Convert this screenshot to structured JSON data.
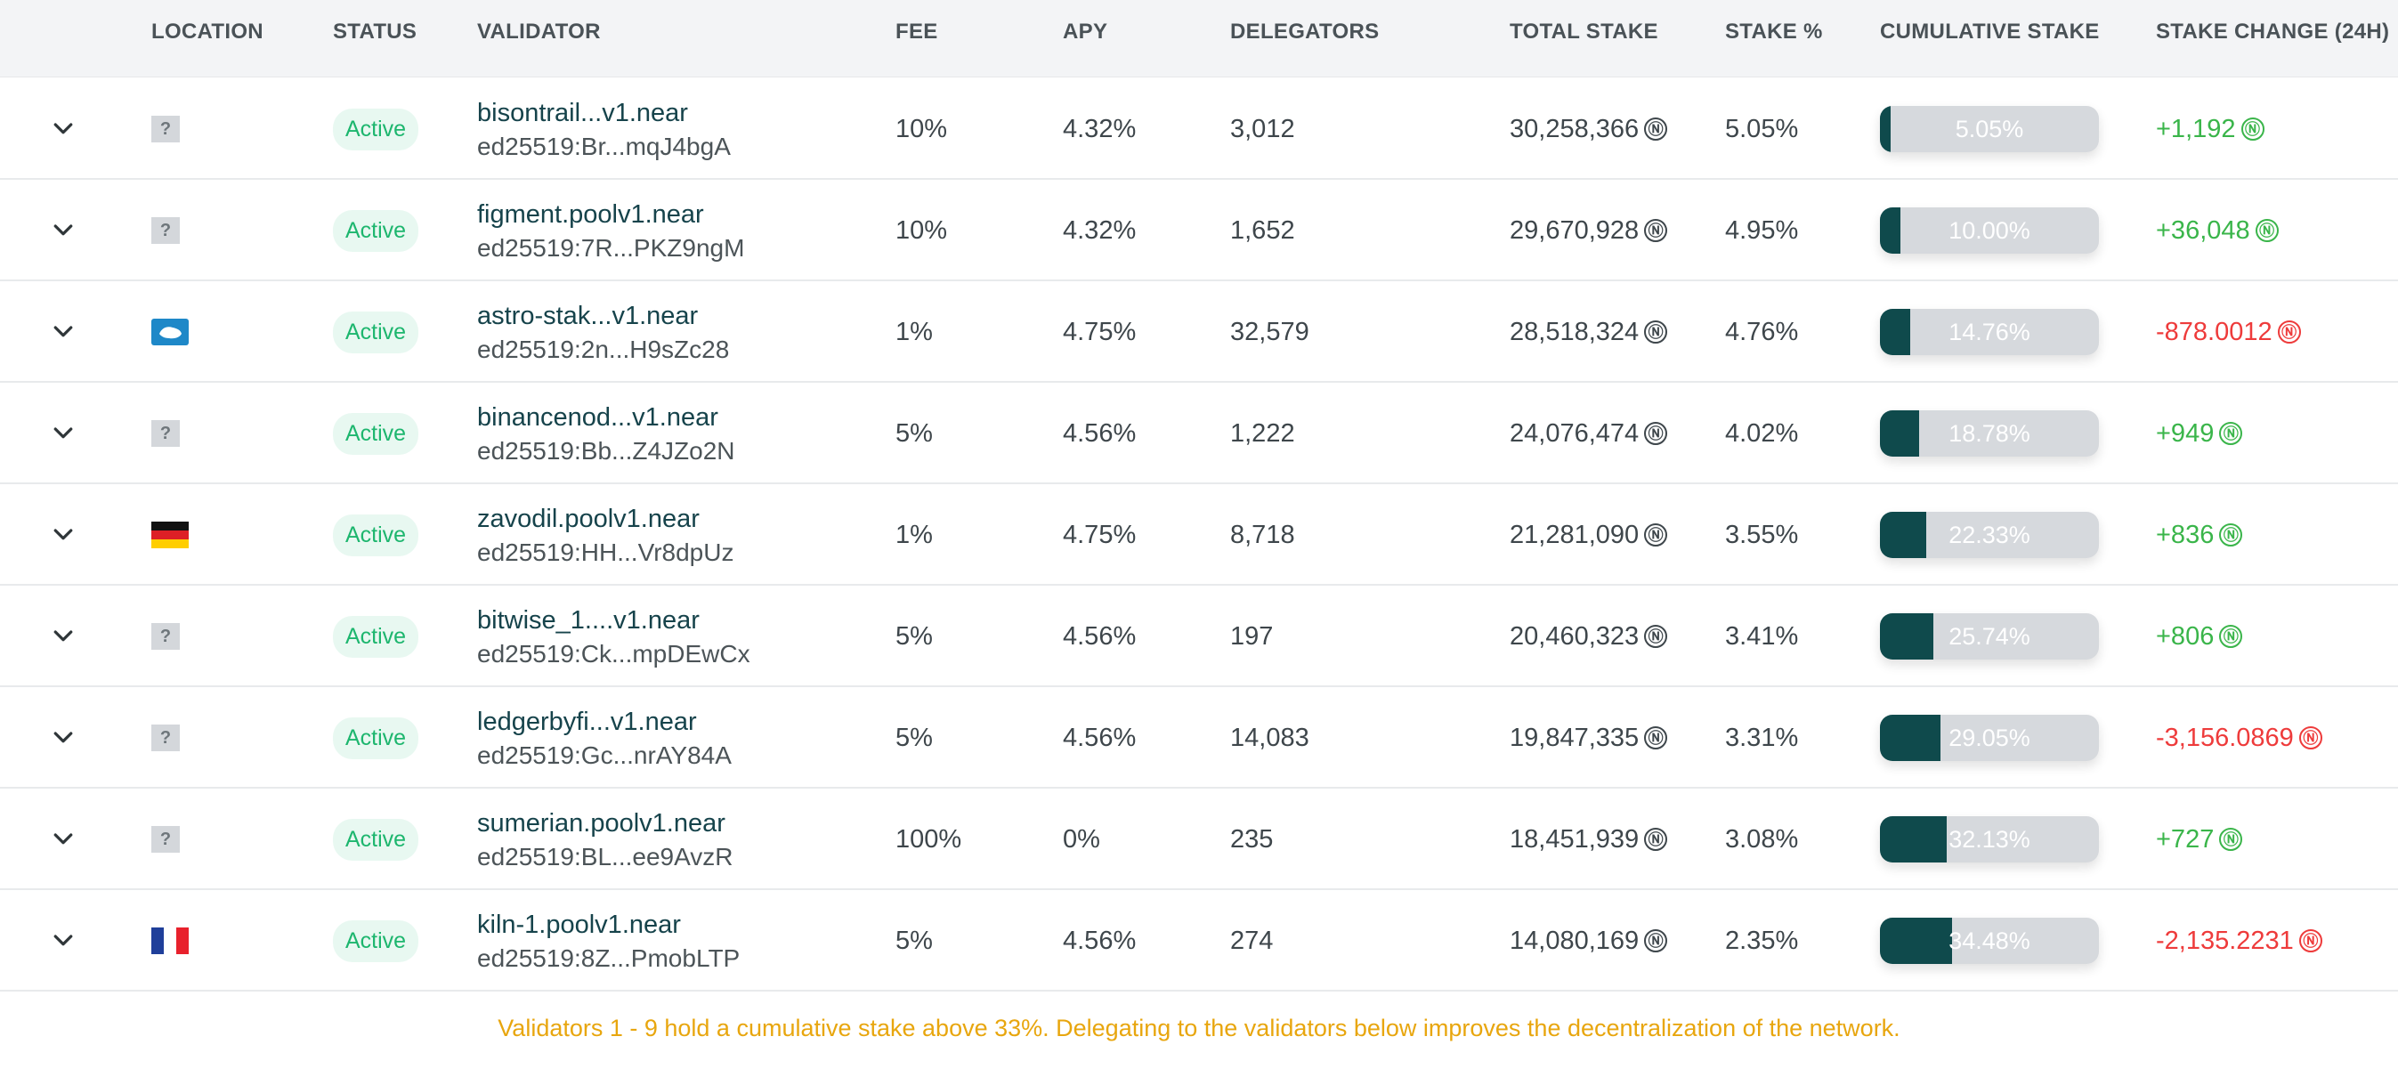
{
  "columns": {
    "location": "LOCATION",
    "status": "STATUS",
    "validator": "VALIDATOR",
    "fee": "FEE",
    "apy": "APY",
    "delegators": "DELEGATORS",
    "total_stake": "TOTAL STAKE",
    "stake_pct": "STAKE %",
    "cumulative": "CUMULATIVE STAKE",
    "change": "STAKE CHANGE (24H)"
  },
  "currency_symbol": "Ⓝ",
  "colors": {
    "positive": "#3ab54a",
    "negative": "#ee3b3b",
    "bar_fill": "#0f4a4c",
    "active_badge": "#1db66e",
    "notice": "#e8a60e"
  },
  "rows": [
    {
      "location": "unknown",
      "status": "Active",
      "name": "bisontrail...v1.near",
      "key": "ed25519:Br...mqJ4bgA",
      "fee": "10%",
      "apy": "4.32%",
      "delegators": "3,012",
      "total_stake": "30,258,366",
      "stake_pct": "5.05%",
      "cumulative": "5.05%",
      "cumulative_value": 5.05,
      "change": "+1,192",
      "change_sign": "pos"
    },
    {
      "location": "unknown",
      "status": "Active",
      "name": "figment.poolv1.near",
      "key": "ed25519:7R...PKZ9ngM",
      "fee": "10%",
      "apy": "4.32%",
      "delegators": "1,652",
      "total_stake": "29,670,928",
      "stake_pct": "4.95%",
      "cumulative": "10.00%",
      "cumulative_value": 10.0,
      "change": "+36,048",
      "change_sign": "pos"
    },
    {
      "location": "antarctica-flag",
      "status": "Active",
      "name": "astro-stak...v1.near",
      "key": "ed25519:2n...H9sZc28",
      "fee": "1%",
      "apy": "4.75%",
      "delegators": "32,579",
      "total_stake": "28,518,324",
      "stake_pct": "4.76%",
      "cumulative": "14.76%",
      "cumulative_value": 14.76,
      "change": "-878.0012",
      "change_sign": "neg"
    },
    {
      "location": "unknown",
      "status": "Active",
      "name": "binancenod...v1.near",
      "key": "ed25519:Bb...Z4JZo2N",
      "fee": "5%",
      "apy": "4.56%",
      "delegators": "1,222",
      "total_stake": "24,076,474",
      "stake_pct": "4.02%",
      "cumulative": "18.78%",
      "cumulative_value": 18.78,
      "change": "+949",
      "change_sign": "pos"
    },
    {
      "location": "germany-flag",
      "status": "Active",
      "name": "zavodil.poolv1.near",
      "key": "ed25519:HH...Vr8dpUz",
      "fee": "1%",
      "apy": "4.75%",
      "delegators": "8,718",
      "total_stake": "21,281,090",
      "stake_pct": "3.55%",
      "cumulative": "22.33%",
      "cumulative_value": 22.33,
      "change": "+836",
      "change_sign": "pos"
    },
    {
      "location": "unknown",
      "status": "Active",
      "name": "bitwise_1....v1.near",
      "key": "ed25519:Ck...mpDEwCx",
      "fee": "5%",
      "apy": "4.56%",
      "delegators": "197",
      "total_stake": "20,460,323",
      "stake_pct": "3.41%",
      "cumulative": "25.74%",
      "cumulative_value": 25.74,
      "change": "+806",
      "change_sign": "pos"
    },
    {
      "location": "unknown",
      "status": "Active",
      "name": "ledgerbyfi...v1.near",
      "key": "ed25519:Gc...nrAY84A",
      "fee": "5%",
      "apy": "4.56%",
      "delegators": "14,083",
      "total_stake": "19,847,335",
      "stake_pct": "3.31%",
      "cumulative": "29.05%",
      "cumulative_value": 29.05,
      "change": "-3,156.0869",
      "change_sign": "neg"
    },
    {
      "location": "unknown",
      "status": "Active",
      "name": "sumerian.poolv1.near",
      "key": "ed25519:BL...ee9AvzR",
      "fee": "100%",
      "apy": "0%",
      "delegators": "235",
      "total_stake": "18,451,939",
      "stake_pct": "3.08%",
      "cumulative": "32.13%",
      "cumulative_value": 32.13,
      "change": "+727",
      "change_sign": "pos"
    },
    {
      "location": "france-flag",
      "status": "Active",
      "name": "kiln-1.poolv1.near",
      "key": "ed25519:8Z...PmobLTP",
      "fee": "5%",
      "apy": "4.56%",
      "delegators": "274",
      "total_stake": "14,080,169",
      "stake_pct": "2.35%",
      "cumulative": "34.48%",
      "cumulative_value": 34.48,
      "change": "-2,135.2231",
      "change_sign": "neg"
    }
  ],
  "notice": "Validators 1 - 9 hold a cumulative stake above 33%. Delegating to the validators below improves the decentralization of the network."
}
